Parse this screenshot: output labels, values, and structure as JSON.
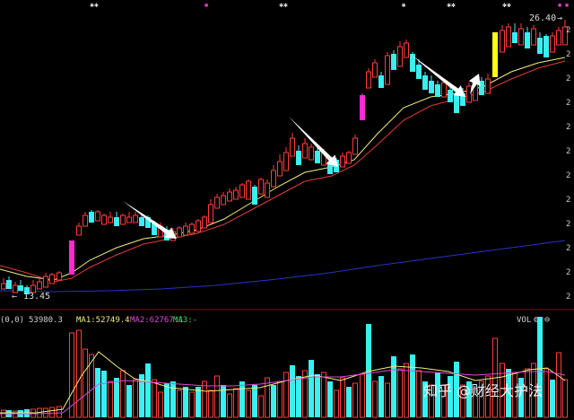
{
  "chart_data": [
    {
      "type": "candlestick",
      "panel": "price",
      "annotations": {
        "high_label": "26.40",
        "low_label": "13.45",
        "high_arrow": "→",
        "low_arrow": "←"
      },
      "ma_lines": [
        {
          "name": "",
          "color": "#f2ee7a"
        },
        {
          "name": "",
          "color": "#e23b3b"
        },
        {
          "name": "",
          "color": "#2a31c8"
        }
      ],
      "tick_labels": [
        "2",
        "2",
        "2",
        "2",
        "2",
        "2",
        "2",
        "2",
        "2",
        "2",
        "2",
        "2"
      ],
      "markers": [
        {
          "symbol": "✱✱",
          "color": "#dcdcdc"
        },
        {
          "symbol": "✱",
          "color": "#ff3fd1"
        },
        {
          "symbol": "✱✱",
          "color": "#dcdcdc"
        },
        {
          "symbol": "✱",
          "color": "#dcdcdc"
        },
        {
          "symbol": "✱✱",
          "color": "#dcdcdc"
        },
        {
          "symbol": "✱✱",
          "color": "#dcdcdc"
        },
        {
          "symbol": "✱",
          "color": "#ff3fd1"
        },
        {
          "symbol": "✱",
          "color": "#ff3fd1"
        }
      ],
      "colors": {
        "up": "#ff3b3b",
        "down": "#39f0f0",
        "limit_up_a": "#ff2bd0",
        "limit_up_b": "#ffff1a",
        "arrow": "#ffffff"
      }
    },
    {
      "type": "bar",
      "panel": "volume",
      "header": {
        "left": "(0,0)",
        "vol": "53980.3",
        "ma1": "MA1:52749.4",
        "ma2": "MA2:62767.1",
        "ma3": "MA3:-",
        "right": "VOL",
        "icons": "⚙ ⊖"
      },
      "legend": [
        {
          "name": "MA1",
          "color": "#f2ee7a"
        },
        {
          "name": "MA2",
          "color": "#e24ad7"
        },
        {
          "name": "MA3",
          "color": "#37e04a"
        }
      ]
    }
  ],
  "watermark": "知乎 @财经大护法"
}
